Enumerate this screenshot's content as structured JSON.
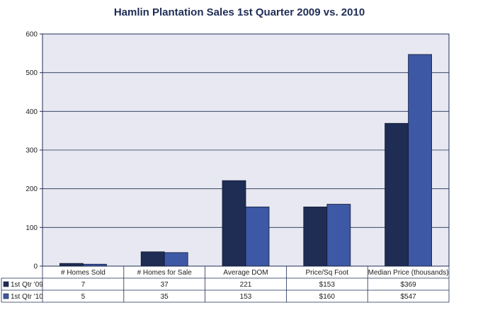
{
  "chart_data": {
    "type": "bar",
    "title": "Hamlin Plantation Sales 1st Quarter 2009 vs. 2010",
    "categories": [
      "# Homes Sold",
      "# Homes for Sale",
      "Average DOM",
      "Price/Sq Foot",
      "Median Price (thousands)"
    ],
    "series": [
      {
        "name": "1st Qtr '09",
        "values": [
          7,
          37,
          221,
          153,
          369
        ],
        "labels": [
          "7",
          "37",
          "221",
          "$153",
          "$369"
        ],
        "color": "#1f2d55"
      },
      {
        "name": "1st Qtr '10",
        "values": [
          5,
          35,
          153,
          160,
          547
        ],
        "labels": [
          "5",
          "35",
          "153",
          "$160",
          "$547"
        ],
        "color": "#3d58a5"
      }
    ],
    "ylim": [
      0,
      600
    ],
    "yticks": [
      "0",
      "100",
      "200",
      "300",
      "400",
      "500",
      "600"
    ],
    "grid": true,
    "legend": "data-table-left",
    "plot_background": "#e8e8f2"
  }
}
